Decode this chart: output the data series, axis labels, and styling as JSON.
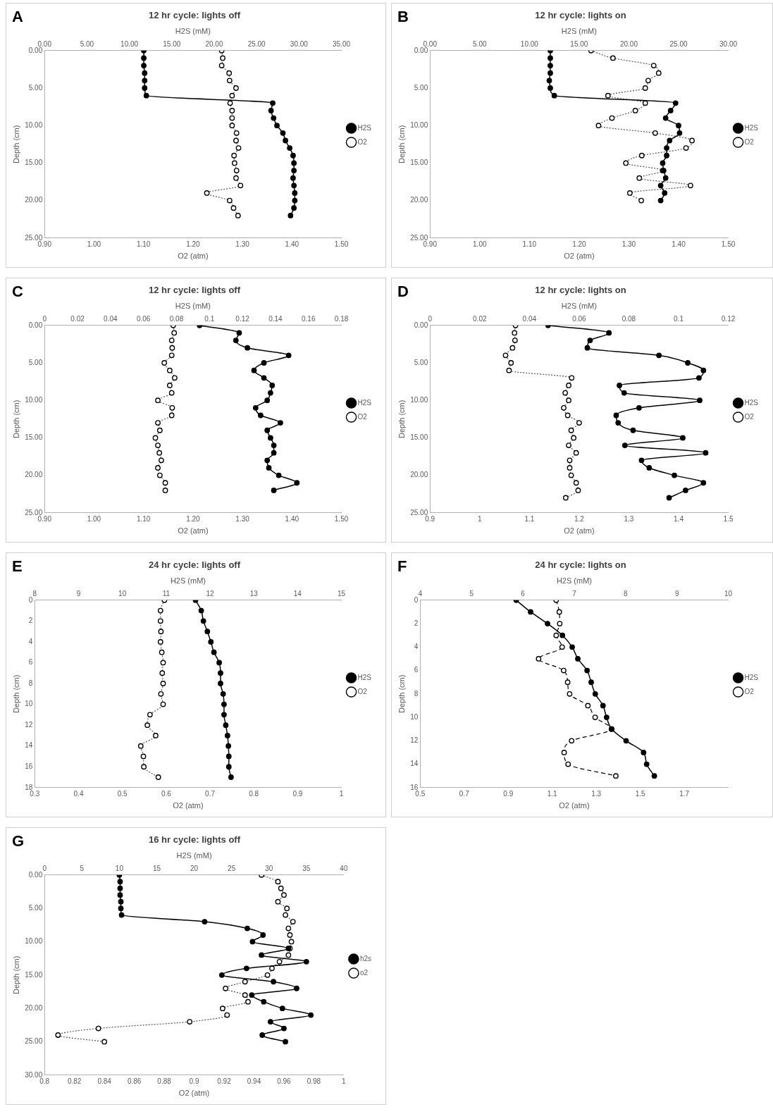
{
  "chart_data": [
    {
      "type": "line",
      "title": "12 hr cycle: lights off",
      "annotations": [
        "A"
      ],
      "ylabel": "Depth (cm)",
      "xlabel": "O2 (atm)",
      "x2label": "H2S (mM)",
      "ylim": [
        25,
        0
      ],
      "yticks": [
        {
          "value": 0,
          "label": "0.00"
        },
        {
          "value": 5,
          "label": "5.00"
        },
        {
          "value": 10,
          "label": "10.00"
        },
        {
          "value": 15,
          "label": "15.00"
        },
        {
          "value": 20,
          "label": "20.00"
        },
        {
          "value": 25,
          "label": "25.00"
        }
      ],
      "xlim": [
        0.9,
        1.5
      ],
      "xticks": [
        {
          "value": 0.9,
          "label": "0.90"
        },
        {
          "value": 1,
          "label": "1.00"
        },
        {
          "value": 1.1,
          "label": "1.10"
        },
        {
          "value": 1.2,
          "label": "1.20"
        },
        {
          "value": 1.3,
          "label": "1.30"
        },
        {
          "value": 1.4,
          "label": "1.40"
        },
        {
          "value": 1.5,
          "label": "1.50"
        }
      ],
      "x2lim": [
        0,
        35
      ],
      "x2ticks": [
        {
          "value": 0,
          "label": "0.00"
        },
        {
          "value": 5,
          "label": "5.00"
        },
        {
          "value": 10,
          "label": "10.00"
        },
        {
          "value": 15,
          "label": "15.00"
        },
        {
          "value": 20,
          "label": "20.00"
        },
        {
          "value": 25,
          "label": "25.00"
        },
        {
          "value": 30,
          "label": "30.00"
        },
        {
          "value": 35,
          "label": "35.00"
        }
      ],
      "legend": "right",
      "marker": "circle",
      "series": [
        {
          "name": "H2S",
          "color": "#000000",
          "axis": "x2",
          "line_style": "solid",
          "x": [
            11.7,
            11.7,
            11.7,
            11.8,
            11.8,
            11.8,
            12.0,
            26.9,
            26.7,
            27.0,
            27.4,
            28.1,
            28.4,
            28.9,
            29.3,
            29.4,
            29.4,
            29.3,
            29.4,
            29.5,
            29.5,
            29.4,
            29.0
          ],
          "values": [
            0,
            1,
            2,
            3,
            4,
            5,
            6,
            7,
            8,
            9,
            10,
            11,
            12,
            13,
            14,
            15,
            16,
            17,
            18,
            19,
            20,
            21,
            22
          ]
        },
        {
          "name": "O2",
          "color": "#555555",
          "line_style": "dotted",
          "x": [
            1.258,
            1.26,
            1.258,
            1.273,
            1.274,
            1.287,
            1.279,
            1.275,
            1.279,
            1.279,
            1.279,
            1.288,
            1.287,
            1.292,
            1.283,
            1.284,
            1.288,
            1.287,
            1.296,
            1.228,
            1.274,
            1.282,
            1.291
          ],
          "values": [
            0,
            1,
            2,
            3,
            4,
            5,
            6,
            7,
            8,
            9,
            10,
            11,
            12,
            13,
            14,
            15,
            16,
            17,
            18,
            19,
            20,
            21,
            22
          ]
        }
      ]
    },
    {
      "type": "line",
      "title": "12 hr cycle: lights on",
      "annotations": [
        "B"
      ],
      "ylabel": "Depth (cm)",
      "xlabel": "O2 (atm)",
      "x2label": "H2S (mM)",
      "ylim": [
        25,
        0
      ],
      "yticks": [
        {
          "value": 0,
          "label": "0.00"
        },
        {
          "value": 5,
          "label": "5.00"
        },
        {
          "value": 10,
          "label": "10.00"
        },
        {
          "value": 15,
          "label": "15.00"
        },
        {
          "value": 20,
          "label": "20.00"
        },
        {
          "value": 25,
          "label": "25.00"
        }
      ],
      "xlim": [
        0.9,
        1.5
      ],
      "xticks": [
        {
          "value": 0.9,
          "label": "0.90"
        },
        {
          "value": 1,
          "label": "1.00"
        },
        {
          "value": 1.1,
          "label": "1.10"
        },
        {
          "value": 1.2,
          "label": "1.20"
        },
        {
          "value": 1.3,
          "label": "1.30"
        },
        {
          "value": 1.4,
          "label": "1.40"
        },
        {
          "value": 1.5,
          "label": "1.50"
        }
      ],
      "x2lim": [
        0,
        30
      ],
      "x2ticks": [
        {
          "value": 0,
          "label": "0.00"
        },
        {
          "value": 5,
          "label": "5.00"
        },
        {
          "value": 10,
          "label": "10.00"
        },
        {
          "value": 15,
          "label": "15.00"
        },
        {
          "value": 20,
          "label": "20.00"
        },
        {
          "value": 25,
          "label": "25.00"
        },
        {
          "value": 30,
          "label": "30.00"
        }
      ],
      "legend": "right",
      "marker": "circle",
      "series": [
        {
          "name": "H2S",
          "color": "#000000",
          "axis": "x2",
          "line_style": "solid",
          "x": [
            12.1,
            12.1,
            12.1,
            12.1,
            12.0,
            12.1,
            12.5,
            24.7,
            24.2,
            23.7,
            25.0,
            25.1,
            24.1,
            23.8,
            23.8,
            23.4,
            23.5,
            23.7,
            23.2,
            23.6,
            23.2
          ],
          "values": [
            0,
            1,
            2,
            3,
            4,
            5,
            6,
            7,
            8,
            9,
            10,
            11,
            12,
            13,
            14,
            15,
            16,
            17,
            18,
            19,
            20
          ]
        },
        {
          "name": "O2",
          "color": "#555555",
          "line_style": "dotted",
          "x": [
            1.224,
            1.268,
            1.35,
            1.36,
            1.339,
            1.333,
            1.258,
            1.333,
            1.313,
            1.266,
            1.239,
            1.353,
            1.427,
            1.415,
            1.326,
            1.294,
            1.368,
            1.321,
            1.424,
            1.302,
            1.325
          ],
          "values": [
            0,
            1,
            2,
            3,
            4,
            5,
            6,
            7,
            8,
            9,
            10,
            11,
            12,
            13,
            14,
            15,
            16,
            17,
            18,
            19,
            20
          ]
        }
      ]
    },
    {
      "type": "line",
      "title": "12 hr cycle: lights off",
      "annotations": [
        "C"
      ],
      "ylabel": "Depth (cm)",
      "xlabel": "O2 (atm)",
      "x2label": "H2S (mM)",
      "ylim": [
        25,
        0
      ],
      "yticks": [
        {
          "value": 0,
          "label": "0.00"
        },
        {
          "value": 5,
          "label": "5.00"
        },
        {
          "value": 10,
          "label": "10.00"
        },
        {
          "value": 15,
          "label": "15.00"
        },
        {
          "value": 20,
          "label": "20.00"
        },
        {
          "value": 25,
          "label": "25.00"
        }
      ],
      "xlim": [
        0.9,
        1.5
      ],
      "xticks": [
        {
          "value": 0.9,
          "label": "0.90"
        },
        {
          "value": 1,
          "label": "1.00"
        },
        {
          "value": 1.1,
          "label": "1.10"
        },
        {
          "value": 1.2,
          "label": "1.20"
        },
        {
          "value": 1.3,
          "label": "1.30"
        },
        {
          "value": 1.4,
          "label": "1.40"
        },
        {
          "value": 1.5,
          "label": "1.50"
        }
      ],
      "x2lim": [
        0,
        0.18
      ],
      "x2ticks": [
        0,
        0.02,
        0.04,
        0.06,
        0.08,
        0.1,
        0.12,
        0.14,
        0.16,
        0.18
      ],
      "legend": "right",
      "marker": "circle",
      "series": [
        {
          "name": "H2S",
          "color": "#000000",
          "axis": "x2",
          "line_style": "solid",
          "x": [
            0.094,
            0.118,
            0.116,
            0.123,
            0.148,
            0.133,
            0.127,
            0.133,
            0.138,
            0.137,
            0.135,
            0.128,
            0.131,
            0.143,
            0.135,
            0.137,
            0.139,
            0.139,
            0.135,
            0.136,
            0.142,
            0.153,
            0.139
          ],
          "values": [
            0,
            1,
            2,
            3,
            4,
            5,
            6,
            7,
            8,
            9,
            10,
            11,
            12,
            13,
            14,
            15,
            16,
            17,
            18,
            19,
            20,
            21,
            22
          ]
        },
        {
          "name": "O2",
          "color": "#555555",
          "line_style": "dotted",
          "x": [
            1.16,
            1.162,
            1.157,
            1.158,
            1.157,
            1.142,
            1.153,
            1.163,
            1.153,
            1.157,
            1.129,
            1.158,
            1.157,
            1.129,
            1.133,
            1.124,
            1.129,
            1.132,
            1.136,
            1.129,
            1.133,
            1.144,
            1.144
          ],
          "values": [
            0,
            1,
            2,
            3,
            4,
            5,
            6,
            7,
            8,
            9,
            10,
            11,
            12,
            13,
            14,
            15,
            16,
            17,
            18,
            19,
            20,
            21,
            22
          ]
        }
      ]
    },
    {
      "type": "line",
      "title": "12 hr cycle: lights on",
      "annotations": [
        "D"
      ],
      "ylabel": "Depth (cm)",
      "xlabel": "O2 (atm)",
      "x2label": "H2S (mM)",
      "ylim": [
        25,
        0
      ],
      "yticks": [
        {
          "value": 0,
          "label": "0.00"
        },
        {
          "value": 5,
          "label": "5.00"
        },
        {
          "value": 10,
          "label": "10.00"
        },
        {
          "value": 15,
          "label": "15.00"
        },
        {
          "value": 20,
          "label": "20.00"
        },
        {
          "value": 25,
          "label": "25.00"
        }
      ],
      "xlim": [
        0.9,
        1.5
      ],
      "xticks": [
        0.9,
        1,
        1.1,
        1.2,
        1.3,
        1.4,
        1.5
      ],
      "x2lim": [
        0,
        0.12
      ],
      "x2ticks": [
        0,
        0.02,
        0.04,
        0.06,
        0.08,
        0.1,
        0.12
      ],
      "legend": "right",
      "marker": "circle",
      "series": [
        {
          "name": "H2S",
          "color": "#000000",
          "axis": "x2",
          "line_style": "solid",
          "x": [
            0.0475,
            0.072,
            0.0644,
            0.0633,
            0.0921,
            0.1037,
            0.11,
            0.1082,
            0.0762,
            0.0781,
            0.1085,
            0.0841,
            0.0749,
            0.0757,
            0.0817,
            0.1017,
            0.0784,
            0.1109,
            0.0851,
            0.0882,
            0.0983,
            0.11,
            0.1028,
            0.0962
          ],
          "values": [
            0,
            1,
            2,
            3,
            4,
            5,
            6,
            7,
            8,
            9,
            10,
            11,
            12,
            13,
            14,
            15,
            16,
            17,
            18,
            19,
            20,
            21,
            22,
            23
          ]
        },
        {
          "name": "O2",
          "color": "#555555",
          "line_style": "dotted",
          "x": [
            1.072,
            1.07,
            1.071,
            1.066,
            1.052,
            1.063,
            1.059,
            1.185,
            1.179,
            1.172,
            1.179,
            1.169,
            1.177,
            1.2,
            1.184,
            1.189,
            1.179,
            1.194,
            1.181,
            1.181,
            1.184,
            1.194,
            1.198,
            1.173
          ],
          "values": [
            0,
            1,
            2,
            3,
            4,
            5,
            6,
            7,
            8,
            9,
            10,
            11,
            12,
            13,
            14,
            15,
            16,
            17,
            18,
            19,
            20,
            21,
            22,
            23
          ]
        }
      ]
    },
    {
      "type": "line",
      "title": "24 hr cycle: lights off",
      "annotations": [
        "E"
      ],
      "ylabel": "Depth (cm)",
      "xlabel": "O2 (atm)",
      "x2label": "H2S (mM)",
      "ylim": [
        18,
        0
      ],
      "yticks": [
        0,
        2,
        4,
        6,
        8,
        10,
        12,
        14,
        16,
        18
      ],
      "xlim": [
        0.3,
        1
      ],
      "xticks": [
        0.3,
        0.4,
        0.5,
        0.6,
        0.7,
        0.8,
        0.9,
        1
      ],
      "x2lim": [
        8,
        15
      ],
      "x2ticks": [
        8,
        9,
        10,
        11,
        12,
        13,
        14,
        15
      ],
      "legend": "right",
      "marker": "circle",
      "series": [
        {
          "name": "H2S",
          "color": "#000000",
          "axis": "x2",
          "line_style": "solid",
          "x": [
            11.67,
            11.8,
            11.85,
            11.94,
            12.02,
            12.09,
            12.21,
            12.24,
            12.24,
            12.3,
            12.32,
            12.32,
            12.36,
            12.4,
            12.42,
            12.43,
            12.43,
            12.48
          ],
          "values": [
            0,
            1,
            2,
            3,
            4,
            5,
            6,
            7,
            8,
            9,
            10,
            11,
            12,
            13,
            14,
            15,
            16,
            17
          ]
        },
        {
          "name": "O2",
          "color": "#555555",
          "line_style": "dotted",
          "x": [
            0.596,
            0.587,
            0.587,
            0.588,
            0.587,
            0.59,
            0.593,
            0.591,
            0.593,
            0.588,
            0.593,
            0.563,
            0.557,
            0.576,
            0.542,
            0.548,
            0.549,
            0.582
          ],
          "values": [
            0,
            1,
            2,
            3,
            4,
            5,
            6,
            7,
            8,
            9,
            10,
            11,
            12,
            13,
            14,
            15,
            16,
            17
          ]
        }
      ]
    },
    {
      "type": "line",
      "title": "24 hr cycle: lights on",
      "annotations": [
        "F"
      ],
      "ylabel": "Depth (cm)",
      "xlabel": "O2 (atm)",
      "x2label": "H2S (mM)",
      "ylim": [
        16,
        0
      ],
      "yticks": [
        0,
        2,
        4,
        6,
        8,
        10,
        12,
        14,
        16
      ],
      "xlim": [
        0.5,
        1.9
      ],
      "xticks": [
        0.5,
        0.7,
        0.9,
        1.1,
        1.3,
        1.5,
        1.7
      ],
      "x2lim": [
        4,
        10
      ],
      "x2ticks": [
        4,
        5,
        6,
        7,
        8,
        9,
        10
      ],
      "legend": "right",
      "marker": "circle",
      "series": [
        {
          "name": "H2S",
          "color": "#000000",
          "axis": "x2",
          "line_style": "solid",
          "x": [
            5.87,
            6.15,
            6.48,
            6.77,
            6.96,
            7.07,
            7.25,
            7.33,
            7.41,
            7.56,
            7.63,
            7.73,
            8.01,
            8.35,
            8.41,
            8.56
          ],
          "values": [
            0,
            1,
            2,
            3,
            4,
            5,
            6,
            7,
            8,
            9,
            10,
            11,
            12,
            13,
            14,
            15
          ]
        },
        {
          "name": "O2",
          "color": "#000000",
          "line_style": "dashed",
          "x": [
            1.118,
            1.132,
            1.134,
            1.118,
            1.145,
            1.038,
            1.152,
            1.17,
            1.179,
            1.262,
            1.295,
            1.369,
            1.188,
            1.154,
            1.172,
            1.389
          ],
          "values": [
            0,
            1,
            2,
            3,
            4,
            5,
            6,
            7,
            8,
            9,
            10,
            11,
            12,
            13,
            14,
            15
          ]
        }
      ]
    },
    {
      "type": "line",
      "title": "16 hr cycle: lights off",
      "annotations": [
        "G"
      ],
      "ylabel": "Depth (cm)",
      "xlabel": "O2 (atm)",
      "x2label": "H2S (mM)",
      "ylim": [
        30,
        0
      ],
      "yticks": [
        {
          "value": 0,
          "label": "0.00"
        },
        {
          "value": 5,
          "label": "5.00"
        },
        {
          "value": 10,
          "label": "10.00"
        },
        {
          "value": 15,
          "label": "15.00"
        },
        {
          "value": 20,
          "label": "20.00"
        },
        {
          "value": 25,
          "label": "25.00"
        },
        {
          "value": 30,
          "label": "30.00"
        }
      ],
      "xlim": [
        0.8,
        1
      ],
      "xticks": [
        0.8,
        0.82,
        0.84,
        0.86,
        0.88,
        0.9,
        0.92,
        0.94,
        0.96,
        0.98,
        1
      ],
      "x2lim": [
        0,
        40
      ],
      "x2ticks": [
        0,
        5,
        10,
        15,
        20,
        25,
        30,
        35,
        40
      ],
      "legend": "right",
      "marker": "circle",
      "series": [
        {
          "name": "h2s",
          "color": "#000000",
          "axis": "x2",
          "line_style": "solid",
          "x": [
            10.0,
            10.1,
            10.1,
            10.1,
            10.2,
            10.2,
            10.3,
            21.4,
            27.1,
            29.2,
            27.8,
            32.6,
            29.0,
            35.0,
            27.0,
            23.7,
            30.6,
            33.7,
            27.7,
            29.3,
            31.8,
            35.6,
            30.2,
            32.0,
            29.1,
            32.2
          ],
          "values": [
            0,
            1,
            2,
            3,
            4,
            5,
            6,
            7,
            8,
            9,
            10,
            11,
            12,
            13,
            14,
            15,
            16,
            17,
            18,
            19,
            20,
            21,
            22,
            23,
            24,
            25
          ]
        },
        {
          "name": "o2",
          "color": "#555555",
          "line_style": "dotted",
          "x": [
            0.945,
            0.956,
            0.958,
            0.96,
            0.956,
            0.962,
            0.961,
            0.966,
            0.963,
            0.964,
            0.965,
            0.964,
            0.963,
            0.957,
            0.952,
            0.949,
            0.934,
            0.921,
            0.934,
            0.936,
            0.919,
            0.922,
            0.897,
            0.836,
            0.809,
            0.84
          ],
          "values": [
            0,
            1,
            2,
            3,
            4,
            5,
            6,
            7,
            8,
            9,
            10,
            11,
            12,
            13,
            14,
            15,
            16,
            17,
            18,
            19,
            20,
            21,
            22,
            23,
            24,
            25
          ]
        }
      ]
    }
  ]
}
